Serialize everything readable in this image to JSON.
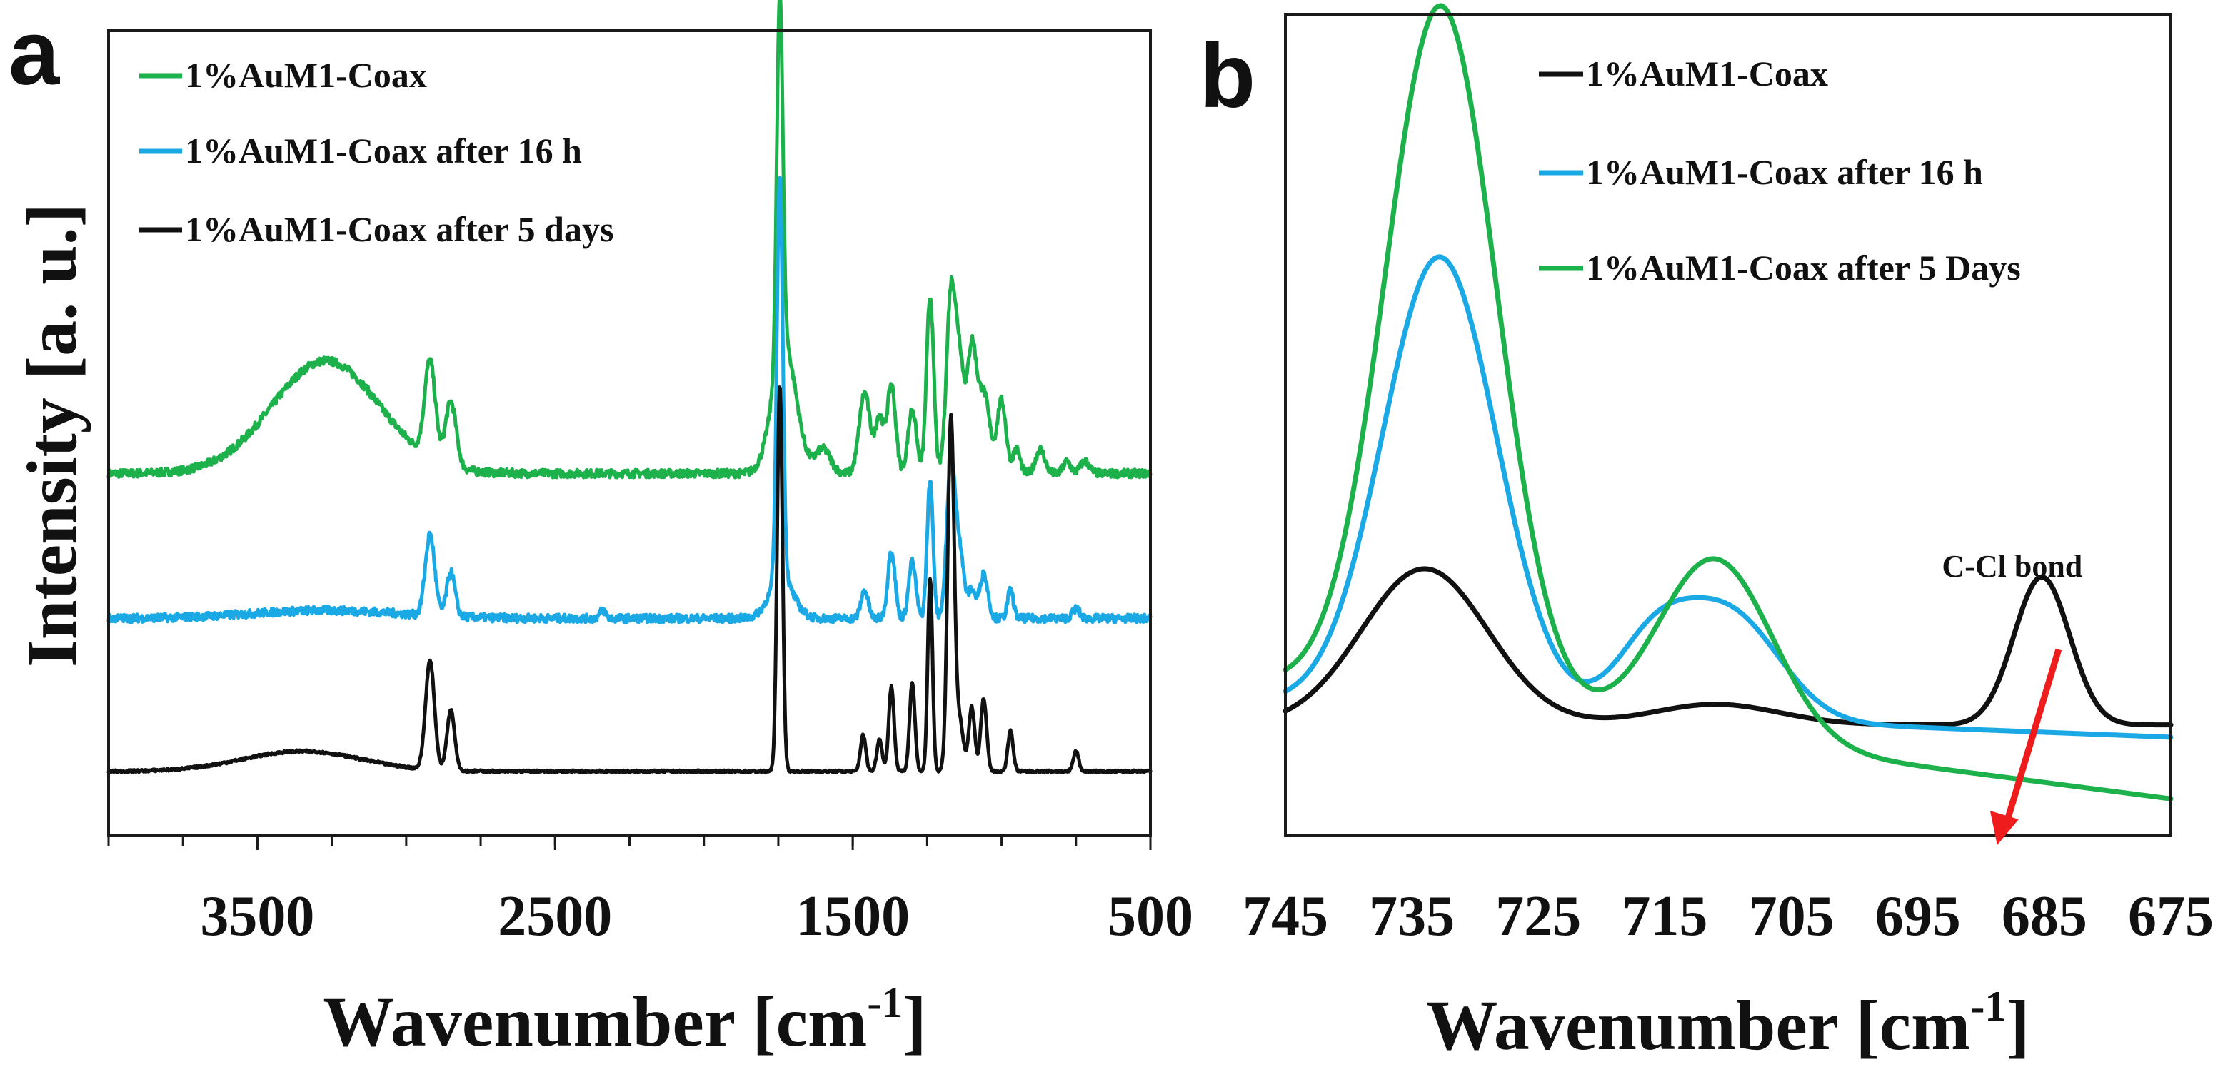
{
  "chart_data": [
    {
      "panel": "a",
      "type": "line",
      "xlabel": "Wavenumber [cm",
      "xlabel_sup": "-1",
      "xlabel_close": "]",
      "ylabel": "Intensity [a. u.]",
      "xlim": [
        4000,
        500
      ],
      "ylim": [
        0,
        10
      ],
      "xticks": [
        3500,
        2500,
        1500,
        500
      ],
      "xticks_minor": [
        4000,
        3750,
        3500,
        3250,
        3000,
        2750,
        2500,
        2250,
        2000,
        1750,
        1500,
        1250,
        1000,
        750,
        500
      ],
      "legend": [
        {
          "label": "1%AuM1-Coax",
          "color": "#1db14b"
        },
        {
          "label": "1%AuM1-Coax after 16 h",
          "color": "#1ba9e6"
        },
        {
          "label": "1%AuM1-Coax after 5 days",
          "color": "#111111"
        }
      ],
      "series": [
        {
          "name": "1%AuM1-Coax",
          "color": "#1db14b",
          "baseline": 4.5,
          "noise": 0.05,
          "peaks": [
            [
              3270,
              1.4,
              180
            ],
            [
              2920,
              1.2,
              18
            ],
            [
              2850,
              0.8,
              18
            ],
            [
              1745,
              4.5,
              10
            ],
            [
              1730,
              1.6,
              40
            ],
            [
              1600,
              0.3,
              25
            ],
            [
              1460,
              1.0,
              18
            ],
            [
              1410,
              0.7,
              14
            ],
            [
              1370,
              1.1,
              14
            ],
            [
              1300,
              0.8,
              14
            ],
            [
              1240,
              2.2,
              12
            ],
            [
              1170,
              2.2,
              15
            ],
            [
              1140,
              1.3,
              15
            ],
            [
              1100,
              1.5,
              15
            ],
            [
              1060,
              1.0,
              20
            ],
            [
              1000,
              0.9,
              15
            ],
            [
              950,
              0.3,
              12
            ],
            [
              870,
              0.3,
              15
            ],
            [
              780,
              0.15,
              12
            ],
            [
              720,
              0.15,
              15
            ]
          ]
        },
        {
          "name": "1%AuM1-Coax after 16 h",
          "color": "#1ba9e6",
          "baseline": 2.7,
          "noise": 0.05,
          "peaks": [
            [
              3270,
              0.1,
              250
            ],
            [
              2920,
              1.0,
              16
            ],
            [
              2850,
              0.55,
              14
            ],
            [
              2340,
              0.1,
              10
            ],
            [
              1745,
              5.0,
              10
            ],
            [
              1740,
              0.5,
              40
            ],
            [
              1460,
              0.35,
              12
            ],
            [
              1370,
              0.85,
              12
            ],
            [
              1300,
              0.7,
              12
            ],
            [
              1240,
              1.7,
              10
            ],
            [
              1170,
              1.9,
              14
            ],
            [
              1140,
              0.8,
              14
            ],
            [
              1100,
              0.35,
              12
            ],
            [
              1060,
              0.55,
              14
            ],
            [
              970,
              0.35,
              10
            ],
            [
              750,
              0.12,
              12
            ]
          ]
        },
        {
          "name": "1%AuM1-Coax after 5 days",
          "color": "#111111",
          "baseline": 0.8,
          "noise": 0.015,
          "peaks": [
            [
              3350,
              0.25,
              200
            ],
            [
              2920,
              1.35,
              15
            ],
            [
              2850,
              0.75,
              13
            ],
            [
              1745,
              4.8,
              9
            ],
            [
              1465,
              0.45,
              9
            ],
            [
              1410,
              0.4,
              9
            ],
            [
              1370,
              1.05,
              9
            ],
            [
              1300,
              1.1,
              9
            ],
            [
              1240,
              2.4,
              8
            ],
            [
              1170,
              4.4,
              11
            ],
            [
              1140,
              0.6,
              12
            ],
            [
              1100,
              0.8,
              10
            ],
            [
              1060,
              0.9,
              10
            ],
            [
              970,
              0.5,
              9
            ],
            [
              750,
              0.25,
              9
            ]
          ]
        }
      ]
    },
    {
      "panel": "b",
      "type": "line",
      "xlabel": "Wavenumber [cm",
      "xlabel_sup": "-1",
      "xlabel_close": "]",
      "xlim": [
        745,
        675
      ],
      "ylim": [
        0,
        10
      ],
      "xticks": [
        745,
        735,
        725,
        715,
        705,
        695,
        685,
        675
      ],
      "legend": [
        {
          "label": "1%AuM1-Coax",
          "color": "#111111"
        },
        {
          "label": "1%AuM1-Coax after 16 h",
          "color": "#1ba9e6"
        },
        {
          "label": "1%AuM1-Coax after 5 Days",
          "color": "#1db14b"
        }
      ],
      "annotation": {
        "text": "C-Cl bond",
        "x": 685,
        "arrow_color": "#ee1c1c"
      },
      "series": [
        {
          "name": "1%AuM1-Coax",
          "color": "#111111",
          "baseline": 1.35,
          "slope": 0,
          "peaks": [
            [
              734,
              1.9,
              5
            ],
            [
              711,
              0.25,
              5
            ],
            [
              685.2,
              1.8,
              2.2
            ]
          ]
        },
        {
          "name": "1%AuM1-Coax after 16 h",
          "color": "#1ba9e6",
          "baseline": 1.2,
          "slope": 0.006,
          "peaks": [
            [
              732.8,
              5.5,
              4.5
            ],
            [
              716,
              0.8,
              3
            ],
            [
              710,
              1.3,
              4
            ]
          ]
        },
        {
          "name": "1%AuM1-Coax after 5 Days",
          "color": "#1db14b",
          "baseline": 0.45,
          "slope": 0.02,
          "peaks": [
            [
              732.7,
              8.5,
              4.4
            ],
            [
              711,
              2.2,
              4.5
            ]
          ]
        }
      ]
    }
  ]
}
